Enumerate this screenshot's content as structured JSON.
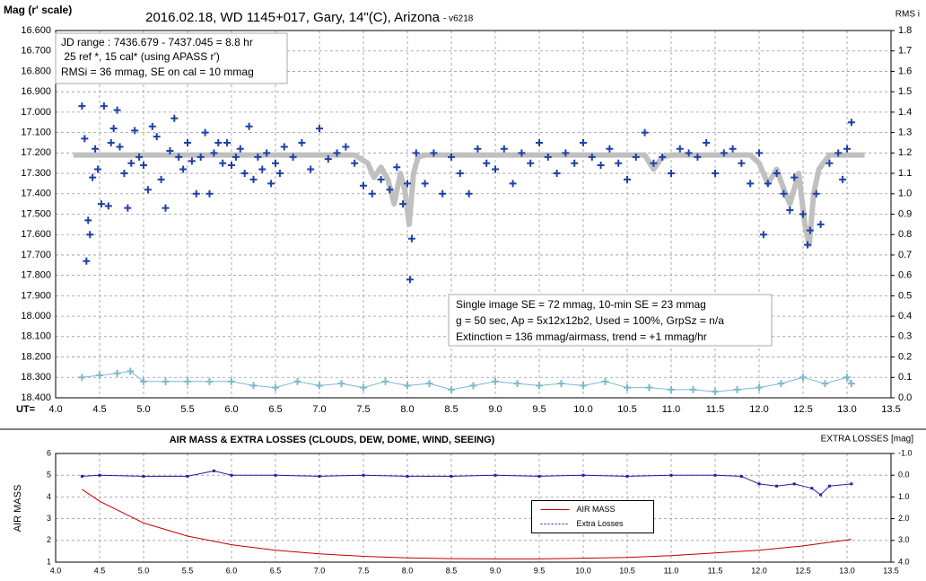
{
  "chart_data": [
    {
      "type": "scatter",
      "title": "2016.02.18, WD 1145+017, Gary, 14\"(C), Arizona",
      "subtitle": "- v6218",
      "y_label": "Mag (r' scale)",
      "y2_label": "RMS i",
      "x_label": "UT=",
      "annotations": [
        [
          "JD range  : 7436.679 - 7437.045  = 8.8 hr",
          " 25 ref *, 15 cal* (using APASS r')",
          "RMSi = 36 mmag, SE on cal = 10 mmag"
        ],
        [
          "Single image SE = 72 mmag, 10-min SE = 23 mmag",
          "g = 50 sec, Ap = 5x12x12b2, Used = 100%, GrpSz = n/a",
          "Extinction = 136 mmag/airmass, trend = +1 mmag/hr"
        ]
      ],
      "xlim": [
        4.0,
        13.5
      ],
      "xticks": [
        {
          "value": 4.0,
          "label": "4.0"
        },
        4.5,
        {
          "value": 5.0,
          "label": "5.0"
        },
        5.5,
        {
          "value": 6.0,
          "label": "6.0"
        },
        6.5,
        {
          "value": 7.0,
          "label": "7.0"
        },
        7.5,
        {
          "value": 8.0,
          "label": "8.0"
        },
        8.5,
        {
          "value": 9.0,
          "label": "9.0"
        },
        9.5,
        {
          "value": 10.0,
          "label": "10.0"
        },
        10.5,
        {
          "value": 11.0,
          "label": "11.0"
        },
        11.5,
        {
          "value": 12.0,
          "label": "12.0"
        },
        12.5,
        {
          "value": 13.0,
          "label": "13.0"
        },
        13.5
      ],
      "ylim": [
        18.4,
        16.6
      ],
      "yticks": [
        {
          "value": 16.6,
          "label": "16.600"
        },
        {
          "value": 16.7,
          "label": "16.700"
        },
        {
          "value": 16.8,
          "label": "16.800"
        },
        {
          "value": 16.9,
          "label": "16.900"
        },
        {
          "value": 17.0,
          "label": "17.000"
        },
        {
          "value": 17.1,
          "label": "17.100"
        },
        {
          "value": 17.2,
          "label": "17.200"
        },
        {
          "value": 17.3,
          "label": "17.300"
        },
        {
          "value": 17.4,
          "label": "17.400"
        },
        {
          "value": 17.5,
          "label": "17.500"
        },
        {
          "value": 17.6,
          "label": "17.600"
        },
        {
          "value": 17.7,
          "label": "17.700"
        },
        {
          "value": 17.8,
          "label": "17.800"
        },
        {
          "value": 17.9,
          "label": "17.900"
        },
        {
          "value": 18.0,
          "label": "18.000"
        },
        {
          "value": 18.1,
          "label": "18.100"
        },
        {
          "value": 18.2,
          "label": "18.200"
        },
        {
          "value": 18.3,
          "label": "18.300"
        },
        {
          "value": 18.4,
          "label": "18.400"
        }
      ],
      "y2lim": [
        0.0,
        1.8
      ],
      "y2ticks": [
        {
          "value": 0.0,
          "label": "0.0"
        },
        0.1,
        0.2,
        0.3,
        0.4,
        0.5,
        0.6,
        0.7,
        0.8,
        0.9,
        {
          "value": 1.0,
          "label": "1.0"
        },
        1.1,
        1.2,
        1.3,
        1.4,
        1.5,
        1.6,
        1.7,
        1.8
      ],
      "grid": true,
      "series": [
        {
          "color": "#c0c0c0",
          "line": true,
          "marker": "none",
          "x": [
            4.2,
            7.4,
            7.55,
            7.62,
            7.7,
            7.78,
            7.85,
            7.92,
            7.97,
            8.02,
            8.07,
            8.12,
            8.2,
            10.7,
            10.8,
            10.9,
            11.0,
            11.9,
            12.0,
            12.1,
            12.2,
            12.3,
            12.35,
            12.45,
            12.52,
            12.57,
            12.62,
            12.68,
            12.8,
            13.2
          ],
          "values": [
            17.21,
            17.21,
            17.25,
            17.32,
            17.27,
            17.33,
            17.45,
            17.3,
            17.38,
            17.55,
            17.3,
            17.22,
            17.21,
            17.21,
            17.28,
            17.22,
            17.21,
            17.21,
            17.25,
            17.35,
            17.28,
            17.4,
            17.45,
            17.3,
            17.55,
            17.65,
            17.4,
            17.28,
            17.21,
            17.21
          ]
        },
        {
          "color": "#1f3fa8",
          "line": false,
          "marker": "plus",
          "x": [
            4.3,
            4.33,
            4.35,
            4.37,
            4.39,
            4.42,
            4.45,
            4.48,
            4.52,
            4.55,
            4.6,
            4.63,
            4.66,
            4.7,
            4.73,
            4.78,
            4.82,
            4.86,
            4.9,
            4.95,
            5.0,
            5.05,
            5.1,
            5.15,
            5.2,
            5.25,
            5.3,
            5.35,
            5.4,
            5.45,
            5.5,
            5.55,
            5.6,
            5.65,
            5.7,
            5.75,
            5.8,
            5.85,
            5.9,
            5.95,
            6.0,
            6.05,
            6.1,
            6.15,
            6.2,
            6.25,
            6.3,
            6.35,
            6.4,
            6.45,
            6.5,
            6.55,
            6.6,
            6.7,
            6.8,
            6.9,
            7.0,
            7.1,
            7.2,
            7.3,
            7.4,
            7.5,
            7.6,
            7.7,
            7.8,
            7.88,
            7.95,
            8.0,
            8.03,
            8.05,
            8.1,
            8.2,
            8.3,
            8.4,
            8.5,
            8.6,
            8.7,
            8.8,
            8.9,
            9.0,
            9.1,
            9.2,
            9.3,
            9.4,
            9.5,
            9.6,
            9.7,
            9.8,
            9.9,
            10.0,
            10.1,
            10.2,
            10.3,
            10.4,
            10.5,
            10.6,
            10.7,
            10.8,
            10.9,
            11.0,
            11.1,
            11.2,
            11.3,
            11.4,
            11.5,
            11.6,
            11.7,
            11.8,
            11.9,
            12.0,
            12.05,
            12.1,
            12.2,
            12.28,
            12.35,
            12.4,
            12.5,
            12.55,
            12.58,
            12.65,
            12.7,
            12.8,
            12.9,
            12.95,
            13.0,
            13.05
          ],
          "values": [
            16.97,
            17.13,
            17.73,
            17.53,
            17.6,
            17.32,
            17.18,
            17.28,
            17.45,
            16.97,
            17.46,
            17.15,
            17.08,
            16.99,
            17.17,
            17.3,
            17.47,
            17.25,
            17.09,
            17.22,
            17.26,
            17.38,
            17.07,
            17.12,
            17.33,
            17.47,
            17.19,
            17.03,
            17.22,
            17.28,
            17.15,
            17.24,
            17.4,
            17.22,
            17.1,
            17.4,
            17.2,
            17.15,
            17.25,
            17.15,
            17.26,
            17.22,
            17.18,
            17.3,
            17.07,
            17.33,
            17.22,
            17.28,
            17.2,
            17.35,
            17.25,
            17.3,
            17.17,
            17.22,
            17.15,
            17.28,
            17.08,
            17.23,
            17.2,
            17.17,
            17.25,
            17.36,
            17.4,
            17.33,
            17.38,
            17.27,
            17.45,
            17.35,
            17.82,
            17.62,
            17.2,
            17.35,
            17.2,
            17.4,
            17.22,
            17.3,
            17.4,
            17.18,
            17.25,
            17.28,
            17.18,
            17.35,
            17.2,
            17.25,
            17.15,
            17.22,
            17.3,
            17.2,
            17.25,
            17.15,
            17.22,
            17.26,
            17.18,
            17.25,
            17.33,
            17.22,
            17.1,
            17.25,
            17.22,
            17.3,
            17.18,
            17.2,
            17.22,
            17.15,
            17.3,
            17.2,
            17.18,
            17.25,
            17.35,
            17.2,
            17.6,
            17.35,
            17.3,
            17.4,
            17.48,
            17.32,
            17.5,
            17.65,
            17.58,
            17.4,
            17.55,
            17.25,
            17.2,
            17.33,
            17.18,
            17.05
          ]
        },
        {
          "color": "#7fb8cc",
          "line": true,
          "marker": "plus",
          "axis": "y2",
          "x": [
            4.3,
            4.5,
            4.7,
            4.85,
            5.0,
            5.25,
            5.5,
            5.75,
            6.0,
            6.25,
            6.5,
            6.75,
            7.0,
            7.25,
            7.5,
            7.75,
            8.0,
            8.25,
            8.5,
            8.75,
            9.0,
            9.25,
            9.5,
            9.75,
            10.0,
            10.25,
            10.5,
            10.75,
            11.0,
            11.25,
            11.5,
            11.75,
            12.0,
            12.25,
            12.5,
            12.75,
            13.0,
            13.05
          ],
          "values": [
            0.1,
            0.11,
            0.12,
            0.13,
            0.08,
            0.08,
            0.08,
            0.08,
            0.08,
            0.06,
            0.05,
            0.08,
            0.06,
            0.07,
            0.05,
            0.08,
            0.06,
            0.07,
            0.04,
            0.06,
            0.08,
            0.07,
            0.06,
            0.07,
            0.06,
            0.08,
            0.05,
            0.05,
            0.04,
            0.04,
            0.03,
            0.04,
            0.05,
            0.07,
            0.1,
            0.07,
            0.1,
            0.07
          ]
        }
      ]
    },
    {
      "type": "line",
      "title": "AIR MASS & EXTRA LOSSES (CLOUDS, DEW, DOME, WIND, SEEING)",
      "y_label": "AIR MASS",
      "y2_label": "EXTRA LOSSES [mag]",
      "legend": "center",
      "xlim": [
        4.0,
        13.5
      ],
      "xticks": [
        {
          "value": 4.0,
          "label": "4.0"
        },
        4.5,
        {
          "value": 5.0,
          "label": "5.0"
        },
        5.5,
        {
          "value": 6.0,
          "label": "6.0"
        },
        6.5,
        {
          "value": 7.0,
          "label": "7.0"
        },
        7.5,
        {
          "value": 8.0,
          "label": "8.0"
        },
        8.5,
        {
          "value": 9.0,
          "label": "9.0"
        },
        9.5,
        {
          "value": 10.0,
          "label": "10.0"
        },
        10.5,
        {
          "value": 11.0,
          "label": "11.0"
        },
        11.5,
        {
          "value": 12.0,
          "label": "12.0"
        },
        12.5,
        {
          "value": 13.0,
          "label": "13.0"
        },
        13.5
      ],
      "ylim": [
        1,
        6
      ],
      "yticks": [
        1,
        2,
        3,
        4,
        5,
        6
      ],
      "y2lim": [
        4.0,
        -1.0
      ],
      "y2ticks": [
        {
          "value": -1.0,
          "label": "-1.0"
        },
        {
          "value": 0.0,
          "label": "0.0"
        },
        {
          "value": 1.0,
          "label": "1.0"
        },
        {
          "value": 2.0,
          "label": "2.0"
        },
        {
          "value": 3.0,
          "label": "3.0"
        },
        {
          "value": 4.0,
          "label": "4.0"
        }
      ],
      "grid": true,
      "series": [
        {
          "name": "AIR MASS",
          "color": "#c00000",
          "line": true,
          "marker": "none",
          "x": [
            4.3,
            4.5,
            5.0,
            5.5,
            6.0,
            6.5,
            7.0,
            7.5,
            8.0,
            8.5,
            9.0,
            9.5,
            10.0,
            10.5,
            11.0,
            11.5,
            12.0,
            12.5,
            13.05
          ],
          "values": [
            4.35,
            3.8,
            2.8,
            2.2,
            1.8,
            1.55,
            1.38,
            1.27,
            1.2,
            1.16,
            1.15,
            1.15,
            1.18,
            1.22,
            1.3,
            1.42,
            1.55,
            1.75,
            2.05
          ]
        },
        {
          "name": "Extra Losses",
          "color": "#1f1fa8",
          "line": true,
          "marker": "dot",
          "axis": "y2",
          "x": [
            4.3,
            4.5,
            5.0,
            5.5,
            5.8,
            6.0,
            6.5,
            7.0,
            7.5,
            8.0,
            8.5,
            9.0,
            9.5,
            10.0,
            10.5,
            11.0,
            11.5,
            11.8,
            12.0,
            12.2,
            12.4,
            12.6,
            12.7,
            12.8,
            13.05
          ],
          "values": [
            0.05,
            0.0,
            0.05,
            0.05,
            -0.2,
            0.0,
            0.0,
            0.05,
            0.0,
            0.05,
            0.05,
            0.0,
            0.05,
            0.0,
            0.05,
            0.0,
            0.0,
            0.05,
            0.4,
            0.5,
            0.4,
            0.6,
            0.9,
            0.5,
            0.4
          ]
        }
      ]
    }
  ]
}
